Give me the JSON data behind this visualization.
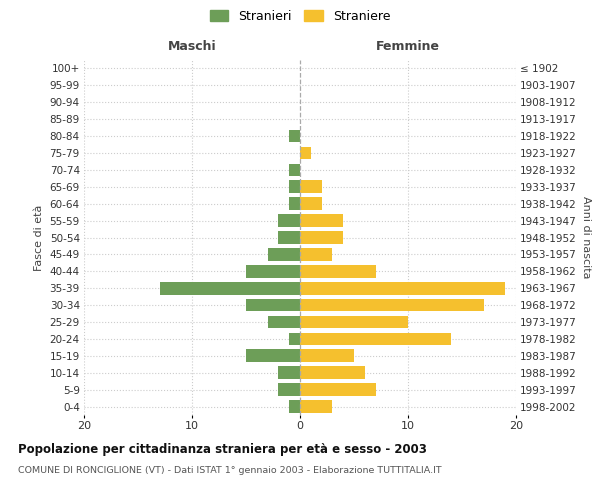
{
  "age_groups": [
    "100+",
    "95-99",
    "90-94",
    "85-89",
    "80-84",
    "75-79",
    "70-74",
    "65-69",
    "60-64",
    "55-59",
    "50-54",
    "45-49",
    "40-44",
    "35-39",
    "30-34",
    "25-29",
    "20-24",
    "15-19",
    "10-14",
    "5-9",
    "0-4"
  ],
  "birth_years": [
    "≤ 1902",
    "1903-1907",
    "1908-1912",
    "1913-1917",
    "1918-1922",
    "1923-1927",
    "1928-1932",
    "1933-1937",
    "1938-1942",
    "1943-1947",
    "1948-1952",
    "1953-1957",
    "1958-1962",
    "1963-1967",
    "1968-1972",
    "1973-1977",
    "1978-1982",
    "1983-1987",
    "1988-1992",
    "1993-1997",
    "1998-2002"
  ],
  "maschi": [
    0,
    0,
    0,
    0,
    1,
    0,
    1,
    1,
    1,
    2,
    2,
    3,
    5,
    13,
    5,
    3,
    1,
    5,
    2,
    2,
    1
  ],
  "femmine": [
    0,
    0,
    0,
    0,
    0,
    1,
    0,
    2,
    2,
    4,
    4,
    3,
    7,
    19,
    17,
    10,
    14,
    5,
    6,
    7,
    3
  ],
  "maschi_color": "#6d9e58",
  "femmine_color": "#f5c02e",
  "title": "Popolazione per cittadinanza straniera per età e sesso - 2003",
  "subtitle": "COMUNE DI RONCIGLIONE (VT) - Dati ISTAT 1° gennaio 2003 - Elaborazione TUTTITALIA.IT",
  "xlabel_left": "Maschi",
  "xlabel_right": "Femmine",
  "ylabel_left": "Fasce di età",
  "ylabel_right": "Anni di nascita",
  "legend_maschi": "Stranieri",
  "legend_femmine": "Straniere",
  "xlim": 20,
  "bg_color": "#ffffff",
  "grid_color": "#cccccc",
  "bar_height": 0.75
}
